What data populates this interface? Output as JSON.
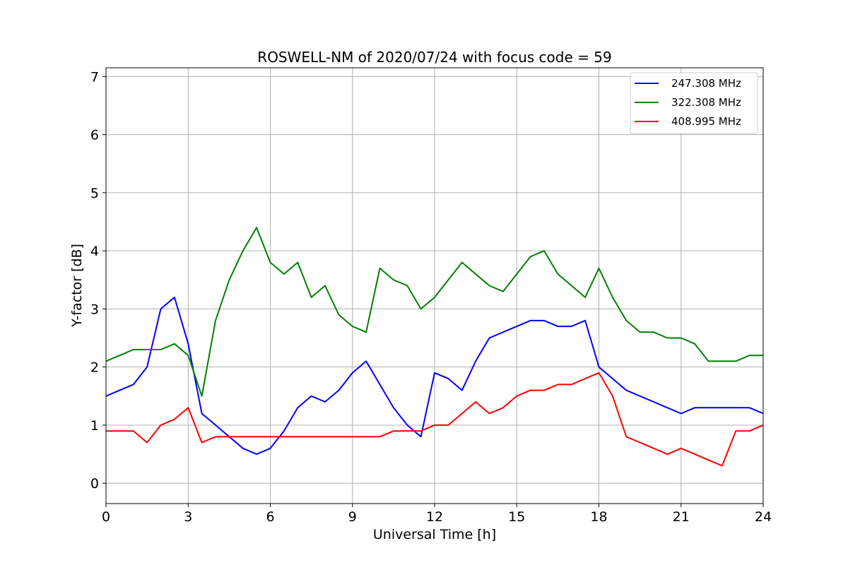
{
  "chart_data": {
    "type": "line",
    "title": "ROSWELL-NM of 2020/07/24 with focus code = 59",
    "xlabel": "Universal Time [h]",
    "ylabel": "Y-factor [dB]",
    "xlim": [
      0,
      24
    ],
    "ylim": [
      -0.35,
      7.15
    ],
    "xticks": [
      0,
      3,
      6,
      9,
      12,
      15,
      18,
      21,
      24
    ],
    "yticks": [
      0,
      1,
      2,
      3,
      4,
      5,
      6,
      7
    ],
    "grid": true,
    "legend_position": "top-right",
    "x": [
      0,
      0.5,
      1,
      1.5,
      2,
      2.5,
      3,
      3.5,
      4,
      4.5,
      5,
      5.5,
      6,
      6.5,
      7,
      7.5,
      8,
      8.5,
      9,
      9.5,
      10,
      10.5,
      11,
      11.5,
      12,
      12.5,
      13,
      13.5,
      14,
      14.5,
      15,
      15.5,
      16,
      16.5,
      17,
      17.5,
      18,
      18.5,
      19,
      19.5,
      20,
      20.5,
      21,
      21.5,
      22,
      22.5,
      23,
      23.5,
      24
    ],
    "series": [
      {
        "name": "247.308 MHz",
        "color": "#0000ff",
        "values": [
          1.5,
          1.6,
          1.7,
          2.0,
          3.0,
          3.2,
          2.4,
          1.2,
          1.0,
          0.8,
          0.6,
          0.5,
          0.6,
          0.9,
          1.3,
          1.5,
          1.4,
          1.6,
          1.9,
          2.1,
          1.7,
          1.3,
          1.0,
          0.8,
          1.9,
          1.8,
          1.6,
          2.1,
          2.5,
          2.6,
          2.7,
          2.8,
          2.8,
          2.7,
          2.7,
          2.8,
          2.0,
          1.8,
          1.6,
          1.5,
          1.4,
          1.3,
          1.2,
          1.3,
          1.3,
          1.3,
          1.3,
          1.3,
          1.2
        ]
      },
      {
        "name": "322.308 MHz",
        "color": "#008000",
        "values": [
          2.1,
          2.2,
          2.3,
          2.3,
          2.3,
          2.4,
          2.2,
          1.5,
          2.8,
          3.5,
          4.0,
          4.4,
          3.8,
          3.6,
          3.8,
          3.2,
          3.4,
          2.9,
          2.7,
          2.6,
          3.7,
          3.5,
          3.4,
          3.0,
          3.2,
          3.5,
          3.8,
          3.6,
          3.4,
          3.3,
          3.6,
          3.9,
          4.0,
          3.6,
          3.4,
          3.2,
          3.7,
          3.2,
          2.8,
          2.6,
          2.6,
          2.5,
          2.5,
          2.4,
          2.1,
          2.1,
          2.1,
          2.2,
          2.2
        ]
      },
      {
        "name": "408.995 MHz",
        "color": "#ff0000",
        "values": [
          0.9,
          0.9,
          0.9,
          0.7,
          1.0,
          1.1,
          1.3,
          0.7,
          0.8,
          0.8,
          0.8,
          0.8,
          0.8,
          0.8,
          0.8,
          0.8,
          0.8,
          0.8,
          0.8,
          0.8,
          0.8,
          0.9,
          0.9,
          0.9,
          1.0,
          1.0,
          1.2,
          1.4,
          1.2,
          1.3,
          1.5,
          1.6,
          1.6,
          1.7,
          1.7,
          1.8,
          1.9,
          1.5,
          0.8,
          0.7,
          0.6,
          0.5,
          0.6,
          0.5,
          0.4,
          0.3,
          0.9,
          0.9,
          1.0
        ]
      }
    ]
  }
}
